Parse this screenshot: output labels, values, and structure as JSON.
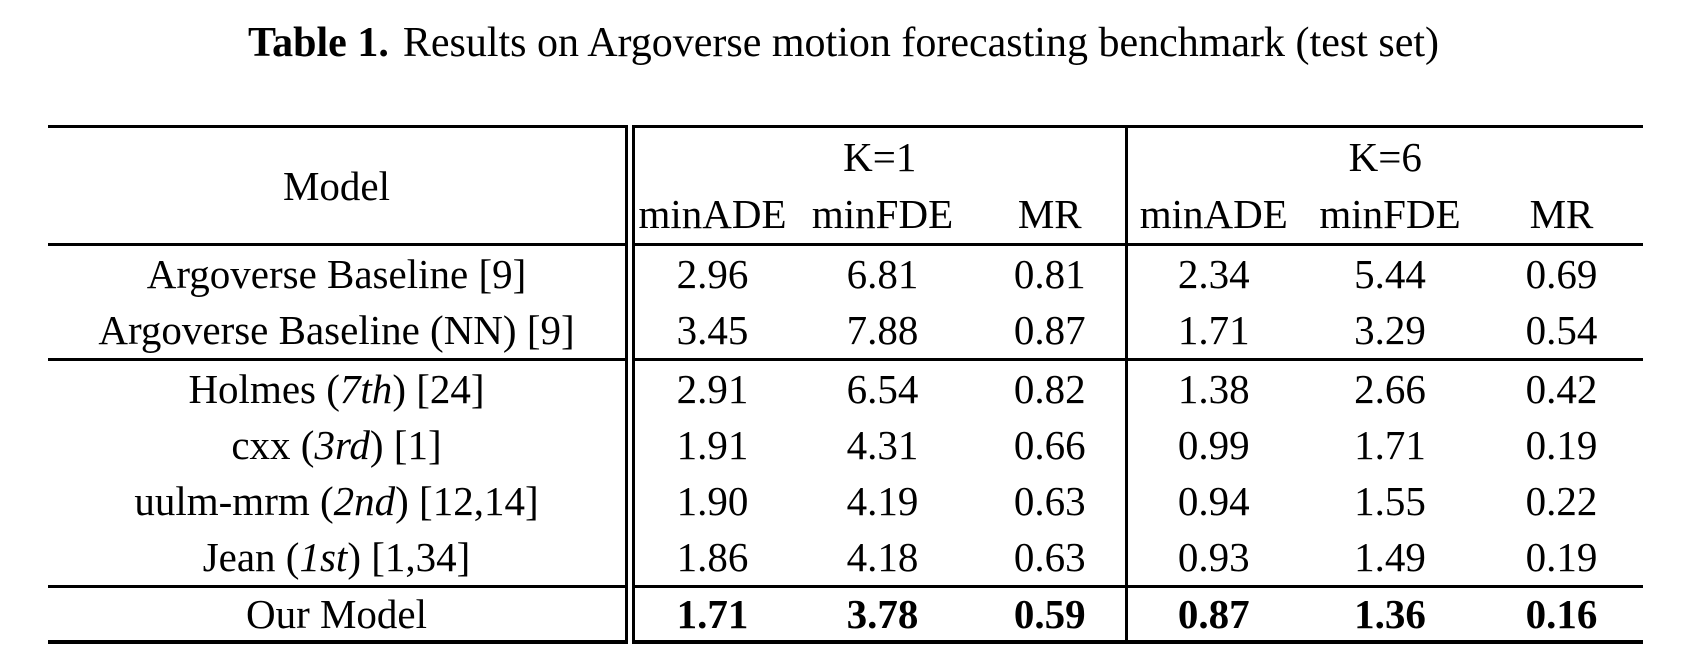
{
  "caption": {
    "label": "Table 1.",
    "text": "Results on Argoverse motion forecasting benchmark (test set)"
  },
  "table": {
    "header": {
      "model": "Model",
      "k1_group": "K=1",
      "k6_group": "K=6",
      "k1_cols": [
        "minADE",
        "minFDE",
        "MR"
      ],
      "k6_cols": [
        "minADE",
        "minFDE",
        "MR"
      ]
    },
    "rows": [
      {
        "model": {
          "pre": "Argoverse Baseline [9]",
          "it": "",
          "post": ""
        },
        "values": [
          "2.96",
          "6.81",
          "0.81",
          "2.34",
          "5.44",
          "0.69"
        ],
        "highlight": false
      },
      {
        "model": {
          "pre": "Argoverse Baseline (NN) [9]",
          "it": "",
          "post": ""
        },
        "values": [
          "3.45",
          "7.88",
          "0.87",
          "1.71",
          "3.29",
          "0.54"
        ],
        "highlight": false
      },
      {
        "model": {
          "pre": "Holmes (",
          "it": "7th",
          "post": ") [24]"
        },
        "values": [
          "2.91",
          "6.54",
          "0.82",
          "1.38",
          "2.66",
          "0.42"
        ],
        "highlight": false
      },
      {
        "model": {
          "pre": "cxx (",
          "it": "3rd",
          "post": ") [1]"
        },
        "values": [
          "1.91",
          "4.31",
          "0.66",
          "0.99",
          "1.71",
          "0.19"
        ],
        "highlight": false
      },
      {
        "model": {
          "pre": "uulm-mrm (",
          "it": "2nd",
          "post": ") [12,14]"
        },
        "values": [
          "1.90",
          "4.19",
          "0.63",
          "0.94",
          "1.55",
          "0.22"
        ],
        "highlight": false
      },
      {
        "model": {
          "pre": "Jean (",
          "it": "1st",
          "post": ") [1,34]"
        },
        "values": [
          "1.86",
          "4.18",
          "0.63",
          "0.93",
          "1.49",
          "0.19"
        ],
        "highlight": false
      },
      {
        "model": {
          "pre": "Our Model",
          "it": "",
          "post": ""
        },
        "values": [
          "1.71",
          "3.78",
          "0.59",
          "0.87",
          "1.36",
          "0.16"
        ],
        "highlight": true
      }
    ]
  },
  "colors": {
    "text": "#000000",
    "background": "#ffffff",
    "rule": "#000000"
  }
}
